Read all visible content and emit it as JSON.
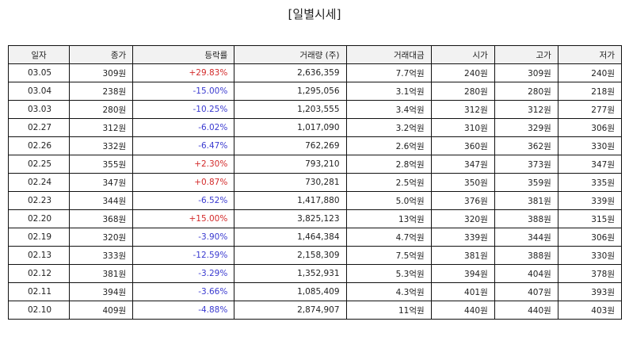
{
  "title": "[일별시세]",
  "headers": [
    "일자",
    "종가",
    "등락률",
    "거래량 (주)",
    "거래대금",
    "시가",
    "고가",
    "저가"
  ],
  "colors": {
    "up": "#d32a2a",
    "down": "#3a3ad0"
  },
  "rows": [
    [
      "03.05",
      "309원",
      "+29.83%",
      "2,636,359",
      "7.7억원",
      "240원",
      "309원",
      "240원"
    ],
    [
      "03.04",
      "238원",
      "-15.00%",
      "1,295,056",
      "3.1억원",
      "280원",
      "280원",
      "218원"
    ],
    [
      "03.03",
      "280원",
      "-10.25%",
      "1,203,555",
      "3.4억원",
      "312원",
      "312원",
      "277원"
    ],
    [
      "02.27",
      "312원",
      "-6.02%",
      "1,017,090",
      "3.2억원",
      "310원",
      "329원",
      "306원"
    ],
    [
      "02.26",
      "332원",
      "-6.47%",
      "762,269",
      "2.6억원",
      "360원",
      "362원",
      "330원"
    ],
    [
      "02.25",
      "355원",
      "+2.30%",
      "793,210",
      "2.8억원",
      "347원",
      "373원",
      "347원"
    ],
    [
      "02.24",
      "347원",
      "+0.87%",
      "730,281",
      "2.5억원",
      "350원",
      "359원",
      "335원"
    ],
    [
      "02.23",
      "344원",
      "-6.52%",
      "1,417,880",
      "5.0억원",
      "376원",
      "381원",
      "339원"
    ],
    [
      "02.20",
      "368원",
      "+15.00%",
      "3,825,123",
      "13억원",
      "320원",
      "388원",
      "315원"
    ],
    [
      "02.19",
      "320원",
      "-3.90%",
      "1,464,384",
      "4.7억원",
      "339원",
      "344원",
      "306원"
    ],
    [
      "02.13",
      "333원",
      "-12.59%",
      "2,158,309",
      "7.5억원",
      "381원",
      "388원",
      "330원"
    ],
    [
      "02.12",
      "381원",
      "-3.29%",
      "1,352,931",
      "5.3억원",
      "394원",
      "404원",
      "378원"
    ],
    [
      "02.11",
      "394원",
      "-3.66%",
      "1,085,409",
      "4.3억원",
      "401원",
      "407원",
      "393원"
    ],
    [
      "02.10",
      "409원",
      "-4.88%",
      "2,874,907",
      "11억원",
      "440원",
      "440원",
      "403원"
    ]
  ]
}
